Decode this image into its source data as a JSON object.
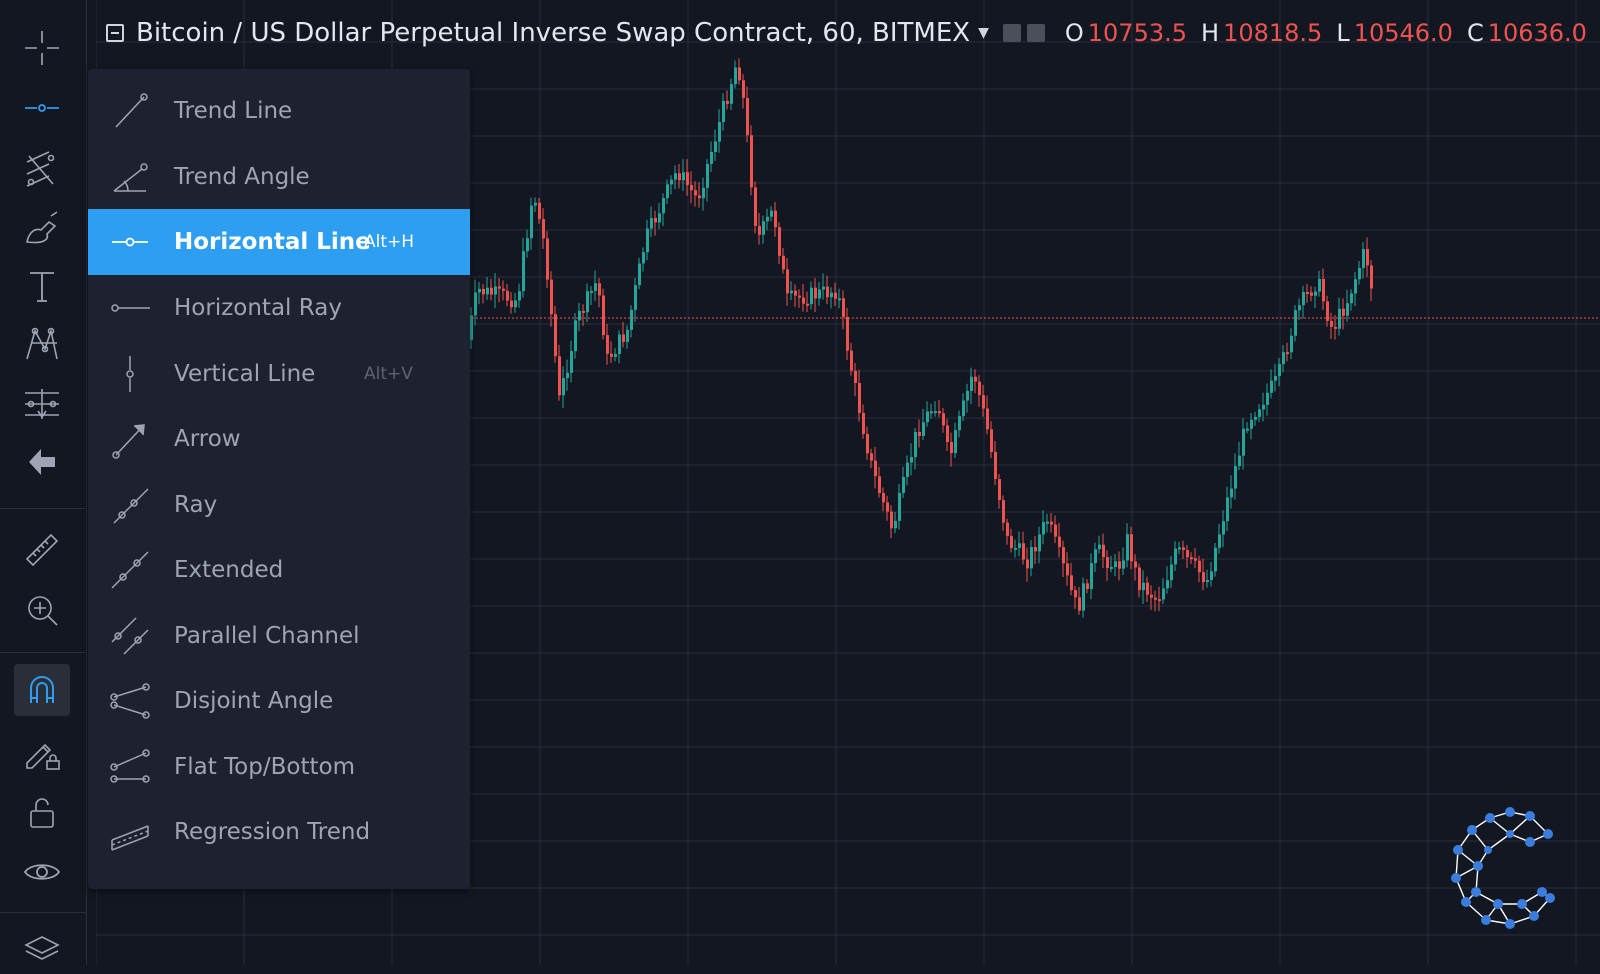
{
  "legend": {
    "symbol": "Bitcoin / US Dollar Perpetual Inverse Swap Contract, 60, BITMEX",
    "open_label": "O",
    "open": "10753.5",
    "high_label": "H",
    "high": "10818.5",
    "low_label": "L",
    "low": "10546.0",
    "close_label": "C",
    "close": "10636.0"
  },
  "toolbar": {
    "icons": [
      "crosshair-icon",
      "horizontal-line-tool-icon",
      "fib-tool-icon",
      "brush-icon",
      "text-icon",
      "pattern-icon",
      "prediction-icon",
      "back-arrow-icon",
      "ruler-icon",
      "zoom-in-icon",
      "magnet-icon",
      "lock-drawing-icon",
      "lock-icon",
      "eye-icon",
      "layers-icon"
    ]
  },
  "menu": {
    "items": [
      {
        "label": "Trend Line",
        "hotkey": "",
        "icon": "trend-line-icon"
      },
      {
        "label": "Trend Angle",
        "hotkey": "",
        "icon": "trend-angle-icon"
      },
      {
        "label": "Horizontal Line",
        "hotkey": "Alt+H",
        "icon": "horizontal-line-icon",
        "active": true
      },
      {
        "label": "Horizontal Ray",
        "hotkey": "",
        "icon": "horizontal-ray-icon"
      },
      {
        "label": "Vertical Line",
        "hotkey": "Alt+V",
        "icon": "vertical-line-icon"
      },
      {
        "label": "Arrow",
        "hotkey": "",
        "icon": "arrow-icon"
      },
      {
        "label": "Ray",
        "hotkey": "",
        "icon": "ray-icon"
      },
      {
        "label": "Extended",
        "hotkey": "",
        "icon": "extended-line-icon"
      },
      {
        "label": "Parallel Channel",
        "hotkey": "",
        "icon": "parallel-channel-icon"
      },
      {
        "label": "Disjoint Angle",
        "hotkey": "",
        "icon": "disjoint-angle-icon"
      },
      {
        "label": "Flat Top/Bottom",
        "hotkey": "",
        "icon": "flat-top-bottom-icon"
      },
      {
        "label": "Regression Trend",
        "hotkey": "",
        "icon": "regression-trend-icon"
      }
    ]
  },
  "colors": {
    "up": "#26a69a",
    "down": "#ef5350",
    "accent": "#2d9ef0",
    "grid": "#2a2e39",
    "price_line": "#ef5350"
  }
}
